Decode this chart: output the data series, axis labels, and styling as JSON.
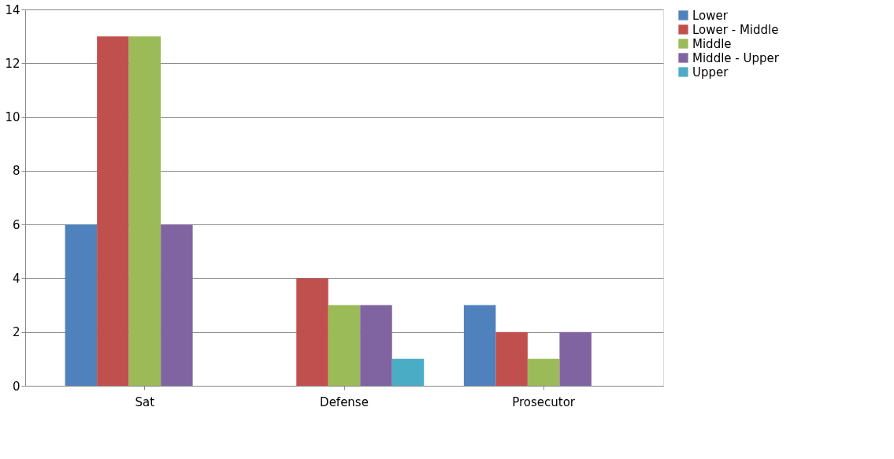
{
  "chart_data": {
    "type": "bar",
    "categories": [
      "Sat",
      "Defense",
      "Prosecutor"
    ],
    "series": [
      {
        "name": "Lower",
        "color": "#4f81bd",
        "values": [
          6,
          0,
          3
        ]
      },
      {
        "name": "Lower - Middle",
        "color": "#c0504d",
        "values": [
          13,
          4,
          2
        ]
      },
      {
        "name": "Middle",
        "color": "#9bbb59",
        "values": [
          13,
          3,
          1
        ]
      },
      {
        "name": "Middle - Upper",
        "color": "#8064a2",
        "values": [
          6,
          3,
          2
        ]
      },
      {
        "name": "Upper",
        "color": "#4bacc6",
        "values": [
          0,
          1,
          0
        ]
      }
    ],
    "ylim": [
      0,
      14
    ],
    "yticks": [
      0,
      2,
      4,
      6,
      8,
      10,
      12,
      14
    ],
    "grid": "y",
    "legend": "right"
  }
}
